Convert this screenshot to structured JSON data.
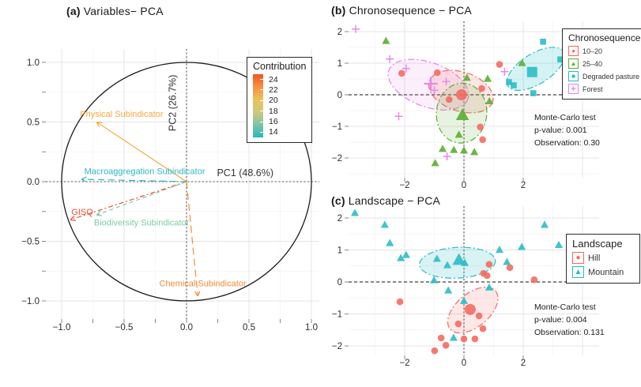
{
  "figure": {
    "background": "#ffffff"
  },
  "chart_data": [
    {
      "id": "a",
      "type": "scatter",
      "subtype": "pca-variable-correlation-circle",
      "title_tag": "(a)",
      "title_text": " Variables− PCA",
      "xlabel": "PC1 (48.6%)",
      "ylabel": "PC2 (26.7%)",
      "xticks": [
        -1.0,
        -0.5,
        0.0,
        0.5,
        1.0
      ],
      "yticks": [
        1.0,
        0.5,
        0.0,
        -0.5,
        -1.0
      ],
      "xlim": [
        -1.12,
        1.06
      ],
      "ylim": [
        -1.15,
        1.11
      ],
      "grid": true,
      "unit_circle": true,
      "arrows": [
        {
          "label": "Physical Subindicator",
          "x": -0.72,
          "y": 0.5,
          "color": "#F7A83E",
          "dash": "none",
          "label_x": -0.52,
          "label_y": 0.57
        },
        {
          "label": "Macroaggregation Subindicator",
          "x": -0.84,
          "y": 0.02,
          "color": "#2BB8C4",
          "dash": "8 5",
          "label_x": -0.335,
          "label_y": 0.09
        },
        {
          "label": "GISQ",
          "x": -0.93,
          "y": -0.32,
          "color": "#F04E31",
          "dash": "6 3 2 3",
          "label_x": -0.835,
          "label_y": -0.25
        },
        {
          "label": "Biodiversity Subindicator",
          "x": -0.72,
          "y": -0.28,
          "color": "#7FCBA4",
          "dash": "5 4",
          "label_x": -0.36,
          "label_y": -0.34
        },
        {
          "label": "Chemical Subindicator",
          "x": 0.09,
          "y": -0.96,
          "color": "#F58B33",
          "dash": "9 5",
          "label_x": 0.13,
          "label_y": -0.85
        }
      ],
      "legend": {
        "title": "Contribution",
        "ticks": [
          24,
          22,
          20,
          18,
          16,
          14
        ],
        "gradient": [
          "#F2541F",
          "#F69140",
          "#E9C25A",
          "#CFC87F",
          "#7FC4A6",
          "#28B7BD"
        ]
      }
    },
    {
      "id": "b",
      "type": "scatter",
      "subtype": "pca-individuals",
      "title_tag": "(b)",
      "title_text": " Chronosequence − PCA",
      "xticks": [
        -2,
        0,
        2
      ],
      "yticks": [
        2,
        1,
        0,
        -1,
        -2
      ],
      "annotation": {
        "lines": [
          "Monte-Carlo test",
          "p-value: 0.001",
          "Observation: 0.30"
        ]
      },
      "legend": {
        "title": "Chronosequence",
        "items": [
          {
            "label": "10–20",
            "marker": "circle",
            "color": "#F4685E"
          },
          {
            "label": "25–40",
            "marker": "triangle",
            "color": "#5BAD32"
          },
          {
            "label": "Degraded pasture",
            "marker": "square",
            "color": "#2BBCC6"
          },
          {
            "label": "Forest",
            "marker": "plus",
            "color": "#E583EA"
          }
        ]
      },
      "series": [
        {
          "name": "Forest",
          "marker": "plus",
          "color": "#E583EA",
          "points": [
            [
              -3.65,
              2.08
            ],
            [
              -2.5,
              1.13
            ],
            [
              -1.95,
              0.83
            ],
            [
              -1.0,
              0.14
            ],
            [
              -0.6,
              0.42
            ],
            [
              1.37,
              0.73
            ],
            [
              -2.2,
              -0.68
            ],
            [
              -0.57,
              -1.95
            ]
          ],
          "centroid": [
            -1.12,
            0.35
          ],
          "ellipse": {
            "cx": -1.2,
            "cy": 0.32,
            "rx": 1.42,
            "ry": 0.7,
            "angle": 20,
            "fill": "#E583EA",
            "opacity": 0.13
          }
        },
        {
          "name": "10–20",
          "marker": "circle",
          "color": "#F4685E",
          "points": [
            [
              -2.1,
              0.68
            ],
            [
              -0.9,
              0.7
            ],
            [
              -0.5,
              -0.15
            ],
            [
              0.6,
              0.2
            ],
            [
              1.2,
              0.96
            ],
            [
              0.55,
              -1.02
            ],
            [
              0.63,
              -1.42
            ]
          ],
          "centroid": [
            -0.08,
            0.0
          ],
          "ellipse": {
            "cx": -0.1,
            "cy": 0.1,
            "rx": 1.12,
            "ry": 0.62,
            "angle": 18,
            "fill": "#F4685E",
            "opacity": 0.16
          }
        },
        {
          "name": "25–40",
          "marker": "triangle",
          "color": "#5BAD32",
          "points": [
            [
              -2.63,
              1.7
            ],
            [
              0.1,
              0.53
            ],
            [
              0.8,
              0.5
            ],
            [
              1.96,
              1.0
            ],
            [
              0.86,
              -0.21
            ],
            [
              -0.17,
              -1.27
            ],
            [
              -0.72,
              -1.72
            ],
            [
              -0.34,
              -1.75
            ],
            [
              0.0,
              -1.77
            ],
            [
              0.35,
              -1.82
            ],
            [
              -0.97,
              -2.17
            ]
          ],
          "centroid": [
            -0.05,
            -0.65
          ],
          "ellipse": {
            "cx": -0.08,
            "cy": -0.58,
            "rx": 0.85,
            "ry": 0.95,
            "angle": 5,
            "fill": "#5BAD32",
            "opacity": 0.15
          }
        },
        {
          "name": "Degraded pasture",
          "marker": "square",
          "color": "#2BBCC6",
          "points": [
            [
              1.52,
              0.4
            ],
            [
              1.68,
              0.3
            ],
            [
              2.67,
              1.68
            ],
            [
              3.25,
              1.12
            ],
            [
              2.34,
              0.05
            ]
          ],
          "centroid": [
            2.3,
            0.72
          ],
          "ellipse": {
            "cx": 2.42,
            "cy": 0.82,
            "rx": 1.1,
            "ry": 0.48,
            "angle": -32,
            "fill": "#2BBCC6",
            "opacity": 0.2
          }
        }
      ]
    },
    {
      "id": "c",
      "type": "scatter",
      "subtype": "pca-individuals",
      "title_tag": "(c)",
      "title_text": " Landscape − PCA",
      "xticks": [
        -2,
        0,
        2
      ],
      "yticks": [
        2,
        1,
        0,
        -1,
        -2
      ],
      "annotation": {
        "lines": [
          "Monte-Carlo test",
          "p-value: 0.004",
          "Observation: 0.131"
        ]
      },
      "legend": {
        "title": "Landscape",
        "items": [
          {
            "label": "Hill",
            "marker": "circle",
            "color": "#F4685E"
          },
          {
            "label": "Mountain",
            "marker": "triangle",
            "color": "#2BBCC6"
          }
        ]
      },
      "series": [
        {
          "name": "Mountain",
          "marker": "triangle",
          "color": "#2BBCC6",
          "points": [
            [
              -3.68,
              2.15
            ],
            [
              -2.67,
              1.78
            ],
            [
              -2.5,
              1.21
            ],
            [
              -2.13,
              0.74
            ],
            [
              -1.95,
              0.84
            ],
            [
              -0.91,
              0.72
            ],
            [
              -0.56,
              0.52
            ],
            [
              0.03,
              0.59
            ],
            [
              -1.01,
              0.05
            ],
            [
              -0.53,
              -0.27
            ],
            [
              0.85,
              -0.18
            ],
            [
              0.0,
              -0.6
            ],
            [
              1.2,
              1.0
            ],
            [
              1.45,
              0.62
            ],
            [
              1.95,
              1.09
            ],
            [
              2.72,
              1.78
            ],
            [
              3.2,
              1.15
            ],
            [
              -0.35,
              -1.75
            ]
          ],
          "centroid": [
            -0.17,
            0.68
          ],
          "ellipse": {
            "cx": -0.22,
            "cy": 0.6,
            "rx": 1.28,
            "ry": 0.48,
            "angle": -3,
            "fill": "#2BBCC6",
            "opacity": 0.18
          }
        },
        {
          "name": "Hill",
          "marker": "circle",
          "color": "#F4685E",
          "points": [
            [
              -2.16,
              -0.62
            ],
            [
              0.85,
              0.55
            ],
            [
              0.66,
              0.27
            ],
            [
              0.78,
              0.2
            ],
            [
              1.55,
              0.45
            ],
            [
              2.37,
              0.07
            ],
            [
              0.51,
              -1.06
            ],
            [
              -0.19,
              -1.31
            ],
            [
              0.64,
              -1.46
            ],
            [
              -0.77,
              -1.75
            ],
            [
              -0.61,
              -1.98
            ],
            [
              0.0,
              -1.78
            ],
            [
              0.37,
              -1.78
            ],
            [
              -0.99,
              -2.15
            ]
          ],
          "centroid": [
            0.21,
            -0.86
          ],
          "ellipse": {
            "cx": 0.3,
            "cy": -0.88,
            "rx": 1.0,
            "ry": 0.52,
            "angle": -40,
            "fill": "#F4685E",
            "opacity": 0.15
          }
        }
      ]
    }
  ]
}
